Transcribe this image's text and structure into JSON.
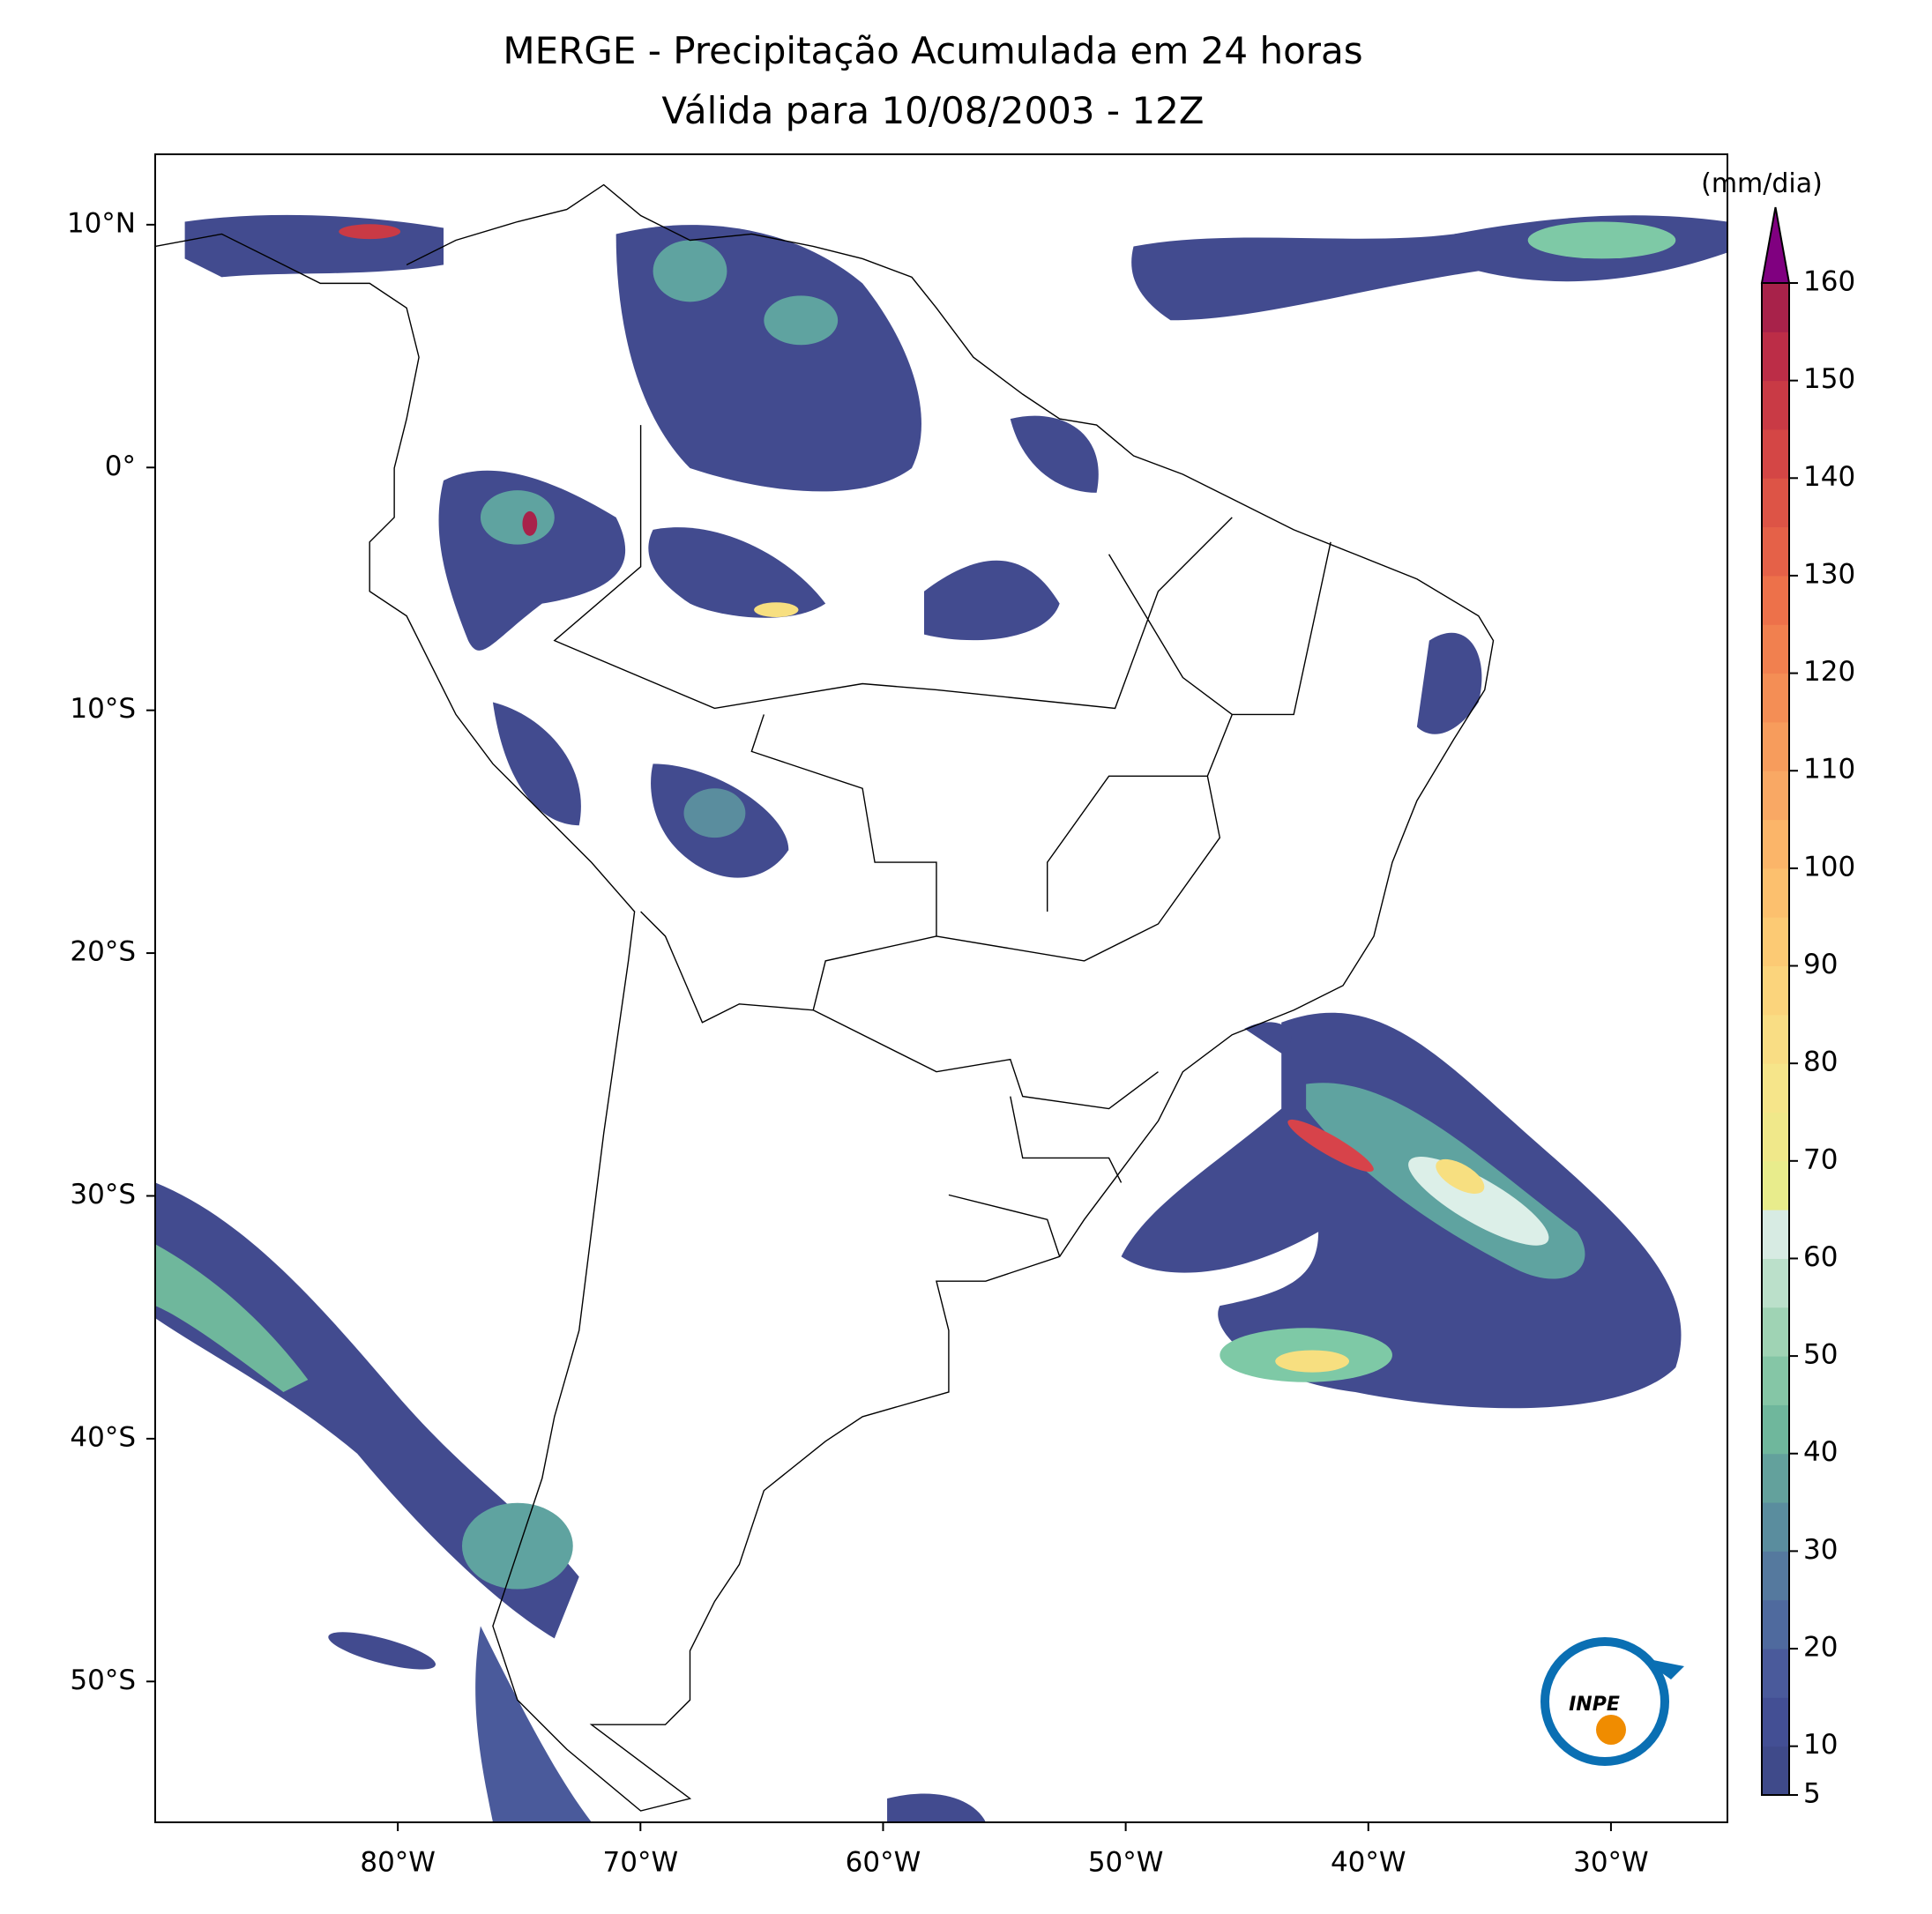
{
  "title": {
    "line1": "MERGE - Precipitação Acumulada em 24 horas",
    "line2": "Válida para 10/08/2003 - 12Z"
  },
  "map": {
    "xlim": [
      -90,
      -25.2
    ],
    "ylim": [
      -55.8,
      12.9
    ],
    "xticks": [
      {
        "value": -80,
        "label": "80°W"
      },
      {
        "value": -70,
        "label": "70°W"
      },
      {
        "value": -60,
        "label": "60°W"
      },
      {
        "value": -50,
        "label": "50°W"
      },
      {
        "value": -40,
        "label": "40°W"
      },
      {
        "value": -30,
        "label": "30°W"
      }
    ],
    "yticks": [
      {
        "value": 10,
        "label": "10°N"
      },
      {
        "value": 0,
        "label": "0°"
      },
      {
        "value": -10,
        "label": "10°S"
      },
      {
        "value": -20,
        "label": "20°S"
      },
      {
        "value": -30,
        "label": "30°S"
      },
      {
        "value": -40,
        "label": "40°S"
      },
      {
        "value": -50,
        "label": "50°S"
      }
    ]
  },
  "colorbar": {
    "label": "(mm/dia)",
    "levels": [
      5,
      10,
      15,
      20,
      25,
      30,
      35,
      40,
      45,
      50,
      55,
      60,
      65,
      70,
      75,
      80,
      85,
      90,
      95,
      100,
      105,
      110,
      115,
      120,
      125,
      130,
      135,
      140,
      145,
      150,
      155,
      160
    ],
    "colors": [
      "#3f4a8a",
      "#434f94",
      "#4a5a9b",
      "#4f6a9e",
      "#55799e",
      "#5a8d9e",
      "#63a19c",
      "#6fb79c",
      "#85c6a6",
      "#9fd3b4",
      "#bbe0ca",
      "#d7ebe3",
      "#e8ec8c",
      "#f0e88a",
      "#f6e58a",
      "#f9dd84",
      "#fbd47c",
      "#fcca74",
      "#fcc06e",
      "#fbb569",
      "#f9a864",
      "#f79c5c",
      "#f48e55",
      "#f1804f",
      "#ed714a",
      "#e56148",
      "#dd5446",
      "#d44645",
      "#c93a45",
      "#bc2d47",
      "#a8224a"
    ],
    "over_color": "#800080",
    "ticks": [
      5,
      10,
      20,
      30,
      40,
      50,
      60,
      70,
      80,
      90,
      100,
      110,
      120,
      130,
      140,
      150,
      160
    ]
  },
  "logo": {
    "text": "INPE"
  }
}
